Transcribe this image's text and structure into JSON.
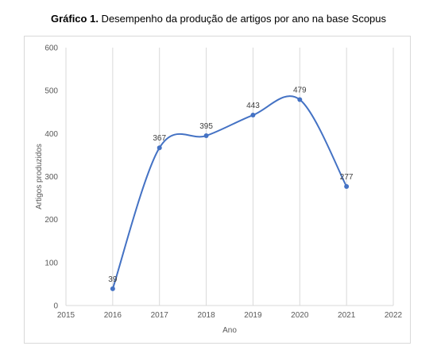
{
  "figure": {
    "label": "Gráfico 1.",
    "caption": " Desempenho da produção de artigos por ano na base Scopus"
  },
  "chart_data": {
    "type": "line",
    "title": "",
    "xlabel": "Ano",
    "ylabel": "Artigos produzidos",
    "x": [
      2016,
      2017,
      2018,
      2019,
      2020,
      2021
    ],
    "series": [
      {
        "values": [
          39,
          367,
          395,
          443,
          479,
          277
        ],
        "color": "#4472C4",
        "smooth": true
      }
    ],
    "data_labels": [
      "39",
      "367",
      "395",
      "443",
      "479",
      "277"
    ],
    "xlim": [
      2015,
      2022
    ],
    "ylim": [
      0,
      600
    ],
    "xticks": [
      "2015",
      "2016",
      "2017",
      "2018",
      "2019",
      "2020",
      "2021",
      "2022"
    ],
    "yticks": [
      "0",
      "100",
      "200",
      "300",
      "400",
      "500",
      "600"
    ],
    "grid": "vertical",
    "legend": "none",
    "gridline_color": "#d9d9d9"
  }
}
